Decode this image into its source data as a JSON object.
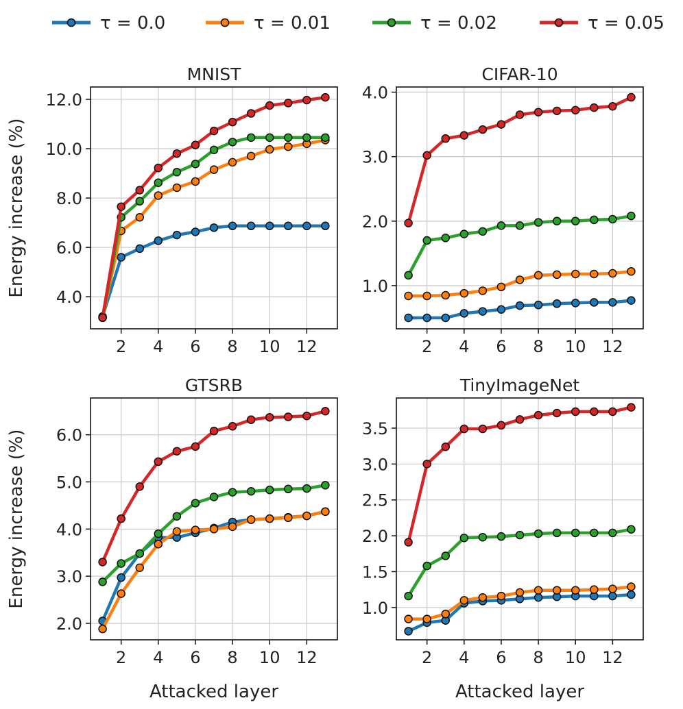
{
  "legend": {
    "placement": "top",
    "entries": [
      {
        "label": "τ = 0.0",
        "color": "#1f77b4"
      },
      {
        "label": "τ = 0.01",
        "color": "#ff7f0e"
      },
      {
        "label": "τ = 0.02",
        "color": "#2ca02c"
      },
      {
        "label": "τ = 0.05",
        "color": "#d62728"
      }
    ]
  },
  "chart_data": [
    {
      "type": "line",
      "title": "MNIST",
      "xlabel": "",
      "ylabel": "Energy increase (%)",
      "x": [
        1,
        2,
        3,
        4,
        5,
        6,
        7,
        8,
        9,
        10,
        11,
        12,
        13
      ],
      "xticks": [
        2,
        4,
        6,
        8,
        10,
        12
      ],
      "xlim": [
        0.35,
        13.65
      ],
      "ylim": [
        2.7,
        12.5
      ],
      "yticks": [
        4.0,
        6.0,
        8.0,
        10.0,
        12.0
      ],
      "ytick_labels": [
        "4.0",
        "6.0",
        "8.0",
        "10.0",
        "12.0"
      ],
      "grid": true,
      "series": [
        {
          "name": "τ = 0.0",
          "color": "#1f77b4",
          "values": [
            3.2,
            5.6,
            5.95,
            6.27,
            6.5,
            6.63,
            6.8,
            6.87,
            6.87,
            6.87,
            6.87,
            6.87,
            6.87
          ]
        },
        {
          "name": "τ = 0.01",
          "color": "#ff7f0e",
          "values": [
            3.15,
            6.67,
            7.22,
            8.1,
            8.42,
            8.67,
            9.15,
            9.45,
            9.7,
            9.97,
            10.08,
            10.2,
            10.35
          ]
        },
        {
          "name": "τ = 0.02",
          "color": "#2ca02c",
          "values": [
            3.15,
            7.22,
            7.87,
            8.62,
            9.05,
            9.38,
            9.95,
            10.27,
            10.45,
            10.45,
            10.45,
            10.45,
            10.45
          ]
        },
        {
          "name": "τ = 0.05",
          "color": "#d62728",
          "values": [
            3.15,
            7.65,
            8.32,
            9.22,
            9.8,
            10.15,
            10.72,
            11.08,
            11.43,
            11.75,
            11.85,
            11.97,
            12.08
          ]
        }
      ]
    },
    {
      "type": "line",
      "title": "CIFAR-10",
      "xlabel": "",
      "ylabel": "",
      "x": [
        1,
        2,
        3,
        4,
        5,
        6,
        7,
        8,
        9,
        10,
        11,
        12,
        13
      ],
      "xticks": [
        2,
        4,
        6,
        8,
        10,
        12
      ],
      "xlim": [
        0.35,
        13.65
      ],
      "ylim": [
        0.33,
        4.08
      ],
      "yticks": [
        1.0,
        2.0,
        3.0,
        4.0
      ],
      "ytick_labels": [
        "1.0",
        "2.0",
        "3.0",
        "4.0"
      ],
      "grid": true,
      "series": [
        {
          "name": "τ = 0.0",
          "color": "#1f77b4",
          "values": [
            0.5,
            0.5,
            0.5,
            0.57,
            0.6,
            0.63,
            0.69,
            0.7,
            0.72,
            0.73,
            0.74,
            0.74,
            0.77
          ]
        },
        {
          "name": "τ = 0.01",
          "color": "#ff7f0e",
          "values": [
            0.84,
            0.84,
            0.85,
            0.88,
            0.92,
            0.98,
            1.09,
            1.16,
            1.17,
            1.18,
            1.18,
            1.19,
            1.22
          ]
        },
        {
          "name": "τ = 0.02",
          "color": "#2ca02c",
          "values": [
            1.16,
            1.7,
            1.74,
            1.8,
            1.84,
            1.93,
            1.93,
            1.98,
            2.0,
            2.0,
            2.02,
            2.03,
            2.08
          ]
        },
        {
          "name": "τ = 0.05",
          "color": "#d62728",
          "values": [
            1.97,
            3.02,
            3.28,
            3.33,
            3.42,
            3.5,
            3.65,
            3.69,
            3.71,
            3.72,
            3.76,
            3.78,
            3.92
          ]
        }
      ]
    },
    {
      "type": "line",
      "title": "GTSRB",
      "xlabel": "Attacked layer",
      "ylabel": "Energy increase (%)",
      "x": [
        1,
        2,
        3,
        4,
        5,
        6,
        7,
        8,
        9,
        10,
        11,
        12,
        13
      ],
      "xticks": [
        2,
        4,
        6,
        8,
        10,
        12
      ],
      "xlim": [
        0.35,
        13.65
      ],
      "ylim": [
        1.65,
        6.78
      ],
      "yticks": [
        2.0,
        3.0,
        4.0,
        5.0,
        6.0
      ],
      "ytick_labels": [
        "2.0",
        "3.0",
        "4.0",
        "5.0",
        "6.0"
      ],
      "grid": true,
      "series": [
        {
          "name": "τ = 0.0",
          "color": "#1f77b4",
          "values": [
            2.05,
            2.97,
            3.48,
            3.82,
            3.82,
            3.92,
            4.02,
            4.15,
            4.2,
            4.22,
            4.25,
            4.28,
            4.37
          ]
        },
        {
          "name": "τ = 0.01",
          "color": "#ff7f0e",
          "values": [
            1.88,
            2.63,
            3.18,
            3.68,
            3.95,
            3.98,
            4.0,
            4.05,
            4.2,
            4.22,
            4.24,
            4.28,
            4.37
          ]
        },
        {
          "name": "τ = 0.02",
          "color": "#2ca02c",
          "values": [
            2.88,
            3.27,
            3.48,
            3.9,
            4.27,
            4.55,
            4.68,
            4.78,
            4.8,
            4.83,
            4.85,
            4.86,
            4.93
          ]
        },
        {
          "name": "τ = 0.05",
          "color": "#d62728",
          "values": [
            3.3,
            4.22,
            4.9,
            5.43,
            5.65,
            5.75,
            6.08,
            6.18,
            6.32,
            6.37,
            6.38,
            6.4,
            6.5
          ]
        }
      ]
    },
    {
      "type": "line",
      "title": "TinyImageNet",
      "xlabel": "Attacked layer",
      "ylabel": "",
      "x": [
        1,
        2,
        3,
        4,
        5,
        6,
        7,
        8,
        9,
        10,
        11,
        12,
        13
      ],
      "xticks": [
        2,
        4,
        6,
        8,
        10,
        12
      ],
      "xlim": [
        0.35,
        13.65
      ],
      "ylim": [
        0.55,
        3.92
      ],
      "yticks": [
        1.0,
        1.5,
        2.0,
        2.5,
        3.0,
        3.5
      ],
      "ytick_labels": [
        "1.0",
        "1.5",
        "2.0",
        "2.5",
        "3.0",
        "3.5"
      ],
      "grid": true,
      "series": [
        {
          "name": "τ = 0.0",
          "color": "#1f77b4",
          "values": [
            0.67,
            0.79,
            0.82,
            1.06,
            1.09,
            1.1,
            1.12,
            1.14,
            1.15,
            1.16,
            1.16,
            1.16,
            1.18
          ]
        },
        {
          "name": "τ = 0.01",
          "color": "#ff7f0e",
          "values": [
            0.84,
            0.84,
            0.91,
            1.1,
            1.14,
            1.16,
            1.21,
            1.24,
            1.24,
            1.24,
            1.25,
            1.26,
            1.29
          ]
        },
        {
          "name": "τ = 0.02",
          "color": "#2ca02c",
          "values": [
            1.16,
            1.58,
            1.72,
            1.97,
            1.98,
            1.99,
            2.01,
            2.03,
            2.04,
            2.04,
            2.04,
            2.04,
            2.09
          ]
        },
        {
          "name": "τ = 0.05",
          "color": "#d62728",
          "values": [
            1.91,
            3.0,
            3.24,
            3.49,
            3.49,
            3.54,
            3.62,
            3.68,
            3.71,
            3.73,
            3.73,
            3.73,
            3.79
          ]
        }
      ]
    }
  ]
}
